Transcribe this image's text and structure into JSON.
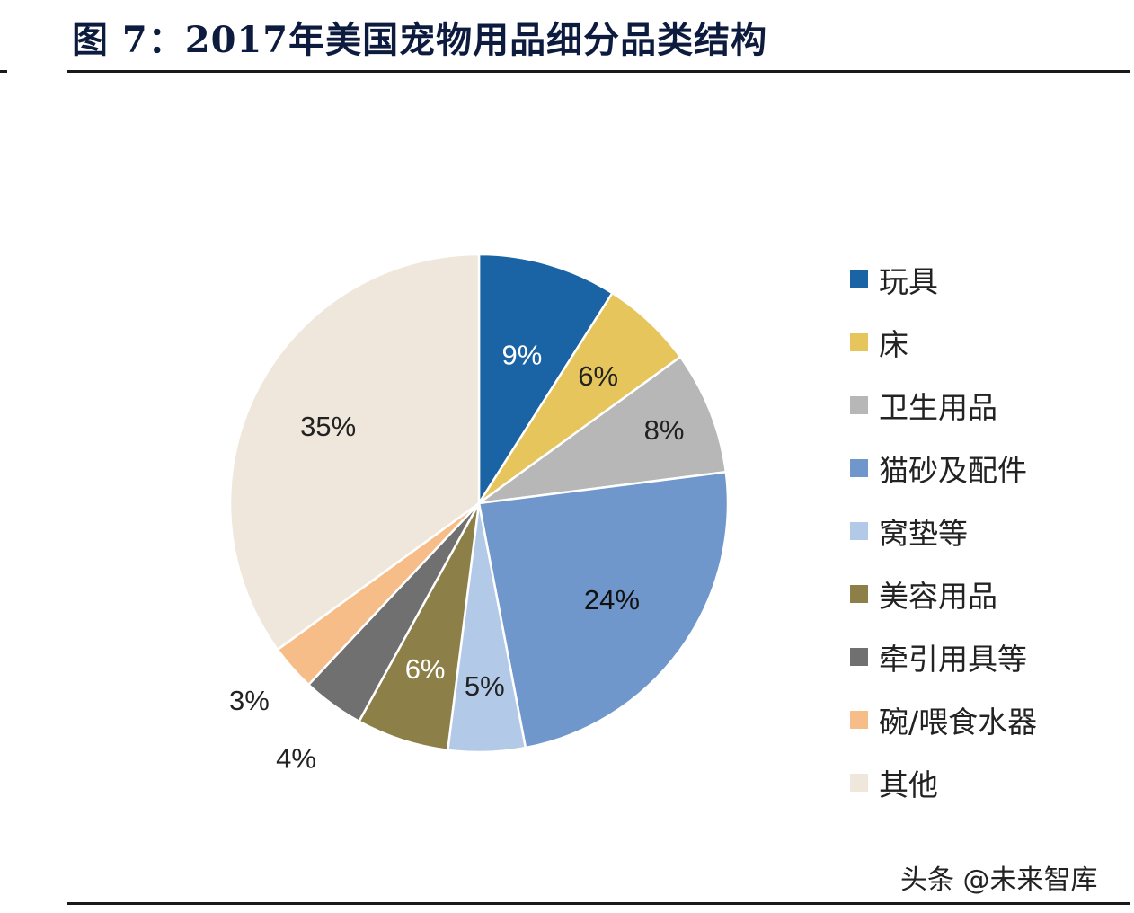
{
  "title": "图 7：2017年美国宠物用品细分品类结构",
  "watermark": "头条 @未来智库",
  "chart_data": {
    "type": "pie",
    "start_angle_deg": 0,
    "direction": "clockwise",
    "slices": [
      {
        "label": "玩具",
        "value": 9,
        "display": "9%",
        "color": "#1a63a5",
        "label_color": "#ffffff"
      },
      {
        "label": "床",
        "value": 6,
        "display": "6%",
        "color": "#e6c55d",
        "label_color": "#222222"
      },
      {
        "label": "卫生用品",
        "value": 8,
        "display": "8%",
        "color": "#b7b7b7",
        "label_color": "#222222"
      },
      {
        "label": "猫砂及配件",
        "value": 24,
        "display": "24%",
        "color": "#6f97cb",
        "label_color": "#111111"
      },
      {
        "label": "窝垫等",
        "value": 5,
        "display": "5%",
        "color": "#b2c9e8",
        "label_color": "#222222"
      },
      {
        "label": "美容用品",
        "value": 6,
        "display": "6%",
        "color": "#8c7f47",
        "label_color": "#ffffff"
      },
      {
        "label": "牵引用具等",
        "value": 4,
        "display": "4%",
        "color": "#707070",
        "label_color": "#222222"
      },
      {
        "label": "碗/喂食水器",
        "value": 3,
        "display": "3%",
        "color": "#f7bd89",
        "label_color": "#222222"
      },
      {
        "label": "其他",
        "value": 35,
        "display": "35%",
        "color": "#efe7db",
        "label_color": "#222222"
      }
    ],
    "legend_position": "right"
  }
}
